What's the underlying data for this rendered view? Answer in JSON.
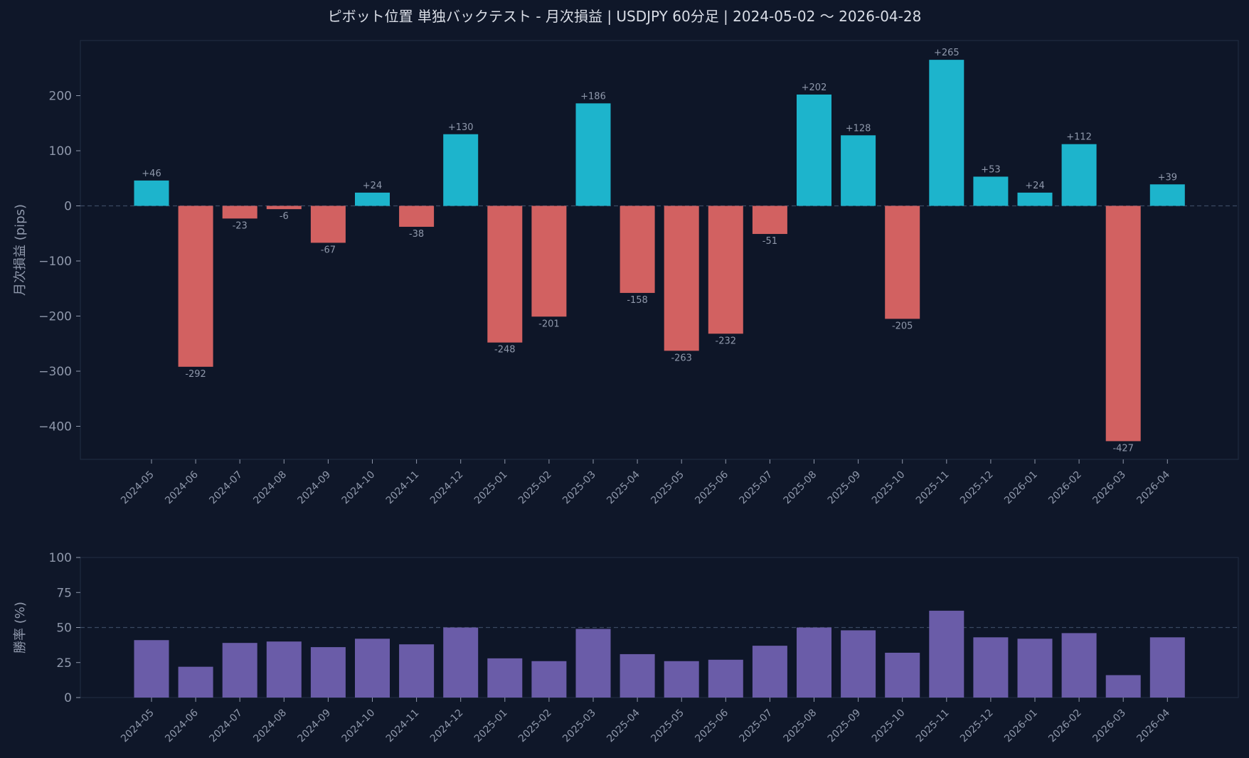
{
  "chart_data": [
    {
      "type": "bar",
      "title": "ピボット位置 単独バックテスト - 月次損益 | USDJPY 60分足 | 2024-05-02 〜 2026-04-28",
      "ylabel": "月次損益 (pips)",
      "xlabel": "",
      "ylim": [
        -460,
        300
      ],
      "yticks": [
        200,
        100,
        0,
        -100,
        -200,
        -300,
        -400
      ],
      "ytick_labels": [
        "200",
        "100",
        "0",
        "−100",
        "−200",
        "−300",
        "−400"
      ],
      "reference_line": 0,
      "categories": [
        "2024-05",
        "2024-06",
        "2024-07",
        "2024-08",
        "2024-09",
        "2024-10",
        "2024-11",
        "2024-12",
        "2025-01",
        "2025-02",
        "2025-03",
        "2025-04",
        "2025-05",
        "2025-06",
        "2025-07",
        "2025-08",
        "2025-09",
        "2025-10",
        "2025-11",
        "2025-12",
        "2026-01",
        "2026-02",
        "2026-03",
        "2026-04"
      ],
      "values": [
        46,
        -292,
        -23,
        -6,
        -67,
        24,
        -38,
        130,
        -248,
        -201,
        186,
        -158,
        -263,
        -232,
        -51,
        202,
        128,
        -205,
        265,
        53,
        24,
        112,
        -427,
        39
      ],
      "data_labels": [
        "+46",
        "-292",
        "-23",
        "-6",
        "-67",
        "+24",
        "-38",
        "+130",
        "-248",
        "-201",
        "+186",
        "-158",
        "-263",
        "-232",
        "-51",
        "+202",
        "+128",
        "-205",
        "+265",
        "+53",
        "+24",
        "+112",
        "-427",
        "+39"
      ],
      "colors": {
        "positive": "#1db4cc",
        "negative": "#d26161"
      },
      "grid": false
    },
    {
      "type": "bar",
      "title": "",
      "ylabel": "勝率 (%)",
      "xlabel": "",
      "ylim": [
        0,
        100
      ],
      "yticks": [
        100,
        75,
        50,
        25,
        0
      ],
      "ytick_labels": [
        "100",
        "75",
        "50",
        "25",
        "0"
      ],
      "reference_line": 50,
      "categories": [
        "2024-05",
        "2024-06",
        "2024-07",
        "2024-08",
        "2024-09",
        "2024-10",
        "2024-11",
        "2024-12",
        "2025-01",
        "2025-02",
        "2025-03",
        "2025-04",
        "2025-05",
        "2025-06",
        "2025-07",
        "2025-08",
        "2025-09",
        "2025-10",
        "2025-11",
        "2025-12",
        "2026-01",
        "2026-02",
        "2026-03",
        "2026-04"
      ],
      "values": [
        41,
        22,
        39,
        40,
        36,
        42,
        38,
        50,
        28,
        26,
        49,
        31,
        26,
        27,
        37,
        50,
        48,
        32,
        62,
        43,
        42,
        46,
        16,
        43
      ],
      "colors": {
        "bar": "#6a5ca8"
      },
      "grid": false
    }
  ]
}
